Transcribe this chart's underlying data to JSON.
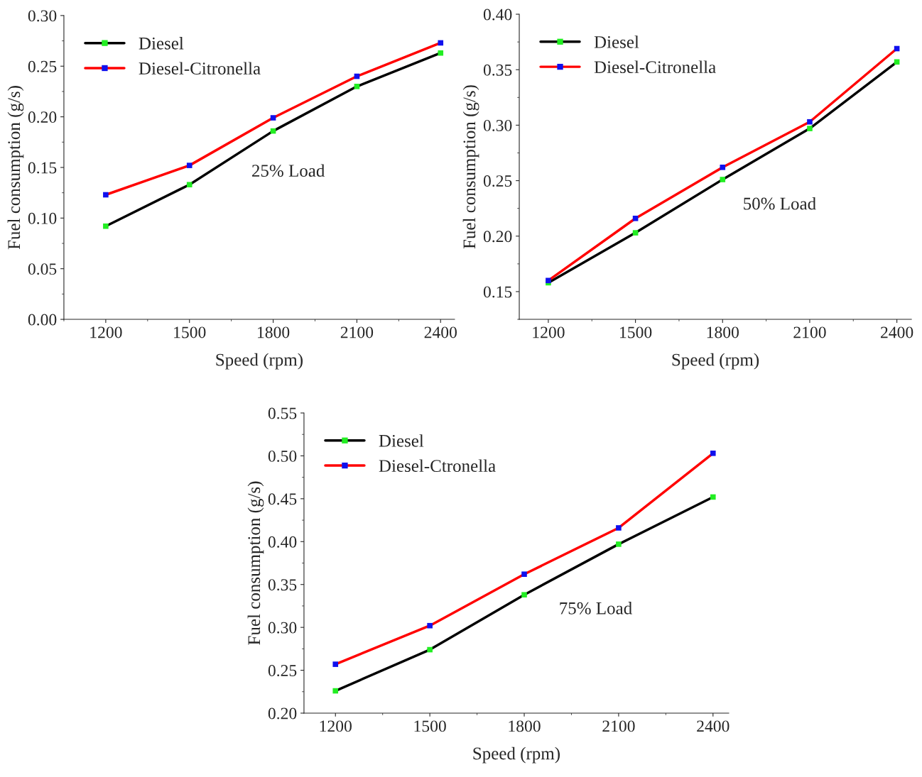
{
  "chart_data": [
    {
      "type": "line",
      "xlabel": "Speed (rpm)",
      "ylabel": "Fuel consumption (g/s)",
      "annotations": [
        "25% Load"
      ],
      "x": [
        1200,
        1500,
        1800,
        2100,
        2400
      ],
      "xlim": [
        1050,
        2450
      ],
      "xticks": [
        1200,
        1500,
        1800,
        2100,
        2400
      ],
      "ylim": [
        0,
        0.3
      ],
      "yticks": [
        {
          "value": 0,
          "label": "0.00"
        },
        {
          "value": 0.05,
          "label": "0.05"
        },
        {
          "value": 0.1,
          "label": "0.10"
        },
        {
          "value": 0.15,
          "label": "0.15"
        },
        {
          "value": 0.2,
          "label": "0.20"
        },
        {
          "value": 0.25,
          "label": "0.25"
        },
        {
          "value": 0.3,
          "label": "0.30"
        }
      ],
      "marker": "square",
      "legend": "top left",
      "grid": false,
      "series": [
        {
          "name": "Diesel",
          "color": "#000000",
          "colors": [
            "#22ee22",
            "#22ee22",
            "#22ee22",
            "#22ee22",
            "#22ee22"
          ],
          "values": [
            0.092,
            0.133,
            0.186,
            0.23,
            0.263
          ]
        },
        {
          "name": "Diesel-Citronella",
          "color": "#ff0000",
          "colors": [
            "#1010ee",
            "#1010ee",
            "#1010ee",
            "#1010ee",
            "#1010ee"
          ],
          "values": [
            0.123,
            0.152,
            0.199,
            0.24,
            0.273
          ]
        }
      ]
    },
    {
      "type": "line",
      "xlabel": "Speed (rpm)",
      "ylabel": "Fuel consumption (g/s)",
      "annotations": [
        "50% Load"
      ],
      "x": [
        1200,
        1500,
        1800,
        2100,
        2400
      ],
      "xlim": [
        1100,
        2450
      ],
      "xticks": [
        1200,
        1500,
        1800,
        2100,
        2400
      ],
      "ylim": [
        0.125,
        0.4
      ],
      "yticks": [
        {
          "value": 0.15,
          "label": "0.15"
        },
        {
          "value": 0.2,
          "label": "0.20"
        },
        {
          "value": 0.25,
          "label": "0.25"
        },
        {
          "value": 0.3,
          "label": "0.30"
        },
        {
          "value": 0.35,
          "label": "0.35"
        },
        {
          "value": 0.4,
          "label": "0.40"
        }
      ],
      "marker": "square",
      "legend": "top left",
      "grid": false,
      "series": [
        {
          "name": "Diesel",
          "color": "#000000",
          "colors": [
            "#22ee22",
            "#22ee22",
            "#22ee22",
            "#22ee22",
            "#22ee22"
          ],
          "values": [
            0.158,
            0.203,
            0.251,
            0.297,
            0.357
          ]
        },
        {
          "name": "Diesel-Citronella",
          "color": "#ff0000",
          "colors": [
            "#1010ee",
            "#1010ee",
            "#1010ee",
            "#1010ee",
            "#1010ee"
          ],
          "values": [
            0.16,
            0.216,
            0.262,
            0.303,
            0.369
          ]
        }
      ]
    },
    {
      "type": "line",
      "xlabel": "Speed (rpm)",
      "ylabel": "Fuel consumption (g/s)",
      "annotations": [
        "75% Load"
      ],
      "x": [
        1200,
        1500,
        1800,
        2100,
        2400
      ],
      "xlim": [
        1100,
        2450
      ],
      "xticks": [
        1200,
        1500,
        1800,
        2100,
        2400
      ],
      "ylim": [
        0.2,
        0.55
      ],
      "yticks": [
        {
          "value": 0.2,
          "label": "0.20"
        },
        {
          "value": 0.25,
          "label": "0.25"
        },
        {
          "value": 0.3,
          "label": "0.30"
        },
        {
          "value": 0.35,
          "label": "0.35"
        },
        {
          "value": 0.4,
          "label": "0.40"
        },
        {
          "value": 0.45,
          "label": "0.45"
        },
        {
          "value": 0.5,
          "label": "0.50"
        },
        {
          "value": 0.55,
          "label": "0.55"
        }
      ],
      "marker": "square",
      "legend": "top left",
      "grid": false,
      "series": [
        {
          "name": "Diesel",
          "color": "#000000",
          "colors": [
            "#22ee22",
            "#22ee22",
            "#22ee22",
            "#22ee22",
            "#22ee22"
          ],
          "values": [
            0.226,
            0.274,
            0.338,
            0.397,
            0.452
          ]
        },
        {
          "name": "Diesel-Ctronella",
          "color": "#ff0000",
          "colors": [
            "#1010ee",
            "#1010ee",
            "#1010ee",
            "#1010ee",
            "#1010ee"
          ],
          "values": [
            0.257,
            0.302,
            0.362,
            0.416,
            0.503
          ]
        }
      ]
    }
  ]
}
